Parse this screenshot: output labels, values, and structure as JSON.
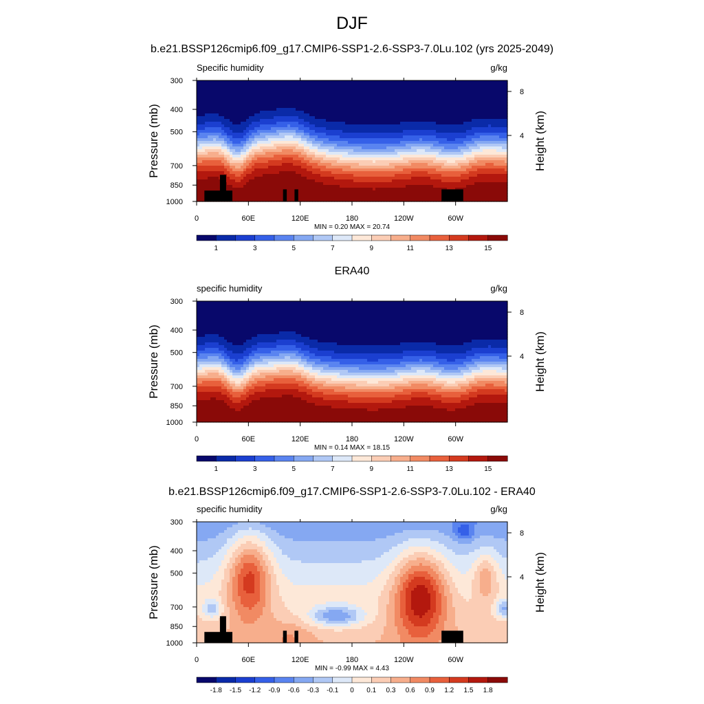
{
  "page": {
    "title": "DJF",
    "case_title": "b.e21.BSSP126cmip6.f09_g17.CMIP6-SSP1-2.6-SSP3-7.0Lu.102 (yrs 2025-2049)"
  },
  "colorbars": {
    "absolute": {
      "colors": [
        "#08086b",
        "#0a2aa8",
        "#1b3fd0",
        "#3560e8",
        "#5a84f0",
        "#85a8f2",
        "#b0c8f5",
        "#dde8f8",
        "#fde8d8",
        "#fbcdb5",
        "#f7ae8c",
        "#f18a63",
        "#e8603c",
        "#d43a1f",
        "#b3180e",
        "#8a0a08"
      ],
      "labels": [
        "1",
        "3",
        "5",
        "7",
        "9",
        "11",
        "13",
        "15"
      ]
    },
    "difference": {
      "colors": [
        "#08086b",
        "#0a2aa8",
        "#1b3fd0",
        "#3560e8",
        "#5a84f0",
        "#85a8f2",
        "#b0c8f5",
        "#dde8f8",
        "#fde8d8",
        "#fbcdb5",
        "#f7ae8c",
        "#f18a63",
        "#e8603c",
        "#d43a1f",
        "#b3180e",
        "#8a0a08"
      ],
      "labels": [
        "-1.8",
        "-1.5",
        "-1.2",
        "-0.9",
        "-0.6",
        "-0.3",
        "-0.1",
        "0",
        "0.1",
        "0.3",
        "0.6",
        "0.9",
        "1.2",
        "1.5",
        "1.8"
      ]
    }
  },
  "chart_data": [
    {
      "type": "heatmap",
      "title": "",
      "left_label": "Specific humidity",
      "right_label": "g/kg",
      "ylabel": "Pressure (mb)",
      "y2label": "Height (km)",
      "x_ticks": [
        "0",
        "60E",
        "120E",
        "180",
        "120W",
        "60W"
      ],
      "y_ticks": [
        "300",
        "400",
        "500",
        "700",
        "850",
        "1000"
      ],
      "y2_ticks": [
        "8",
        "4"
      ],
      "stats": "MIN =   0.20  MAX =  20.74",
      "colorbar": "absolute",
      "min": 0.2,
      "max": 20.74
    },
    {
      "type": "heatmap",
      "title": "ERA40",
      "left_label": "specific humidity",
      "right_label": "g/kg",
      "ylabel": "Pressure (mb)",
      "y2label": "Height (km)",
      "x_ticks": [
        "0",
        "60E",
        "120E",
        "180",
        "120W",
        "60W"
      ],
      "y_ticks": [
        "300",
        "400",
        "500",
        "700",
        "850",
        "1000"
      ],
      "y2_ticks": [
        "8",
        "4"
      ],
      "stats": "MIN =   0.14  MAX =  18.15",
      "colorbar": "absolute",
      "min": 0.14,
      "max": 18.15
    },
    {
      "type": "heatmap",
      "title": "b.e21.BSSP126cmip6.f09_g17.CMIP6-SSP1-2.6-SSP3-7.0Lu.102 - ERA40",
      "left_label": "specific humidity",
      "right_label": "g/kg",
      "ylabel": "Pressure (mb)",
      "y2label": "Height (km)",
      "x_ticks": [
        "0",
        "60E",
        "120E",
        "180",
        "120W",
        "60W"
      ],
      "y_ticks": [
        "300",
        "400",
        "500",
        "700",
        "850",
        "1000"
      ],
      "y2_ticks": [
        "8",
        "4"
      ],
      "stats": "MIN =  -0.99  MAX =   4.43",
      "colorbar": "difference",
      "min": -0.99,
      "max": 4.43
    }
  ]
}
